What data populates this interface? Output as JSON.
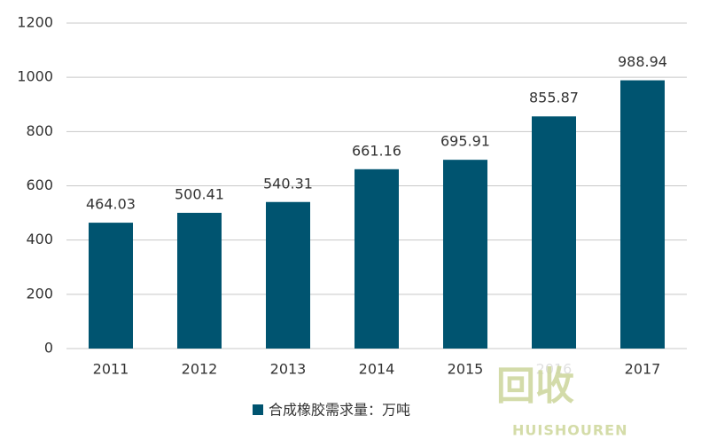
{
  "chart_data": {
    "type": "bar",
    "categories": [
      "2011",
      "2012",
      "2013",
      "2014",
      "2015",
      "2016",
      "2017"
    ],
    "series": [
      {
        "name": "合成橡胶需求量：万吨",
        "color": "#005470",
        "values": [
          464.03,
          500.41,
          540.31,
          661.16,
          695.91,
          855.87,
          988.94
        ]
      }
    ],
    "ylim": [
      0,
      1200
    ],
    "yticks": [
      0,
      200,
      400,
      600,
      800,
      1000,
      1200
    ],
    "grid": true,
    "legend": "bottom"
  },
  "watermark": {
    "logo": "回收",
    "brand": "HUISHOUREN"
  }
}
